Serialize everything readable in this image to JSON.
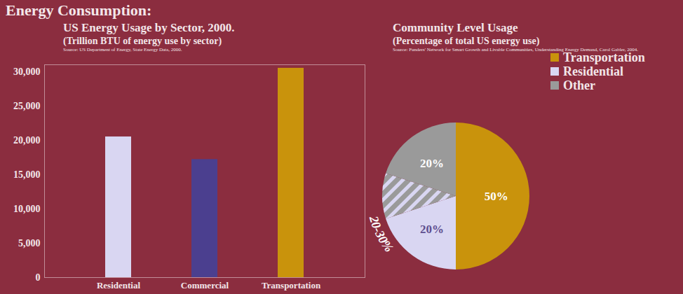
{
  "title": "Energy Consumption:",
  "chart_data": [
    {
      "type": "bar",
      "title": "US Energy Usage by Sector, 2000.",
      "subtitle": "(Trillion BTU of energy use by sector)",
      "source": "Source: US Department of Energy, State Energy Data, 2000.",
      "categories": [
        "Residential",
        "Commercial",
        "Transportation"
      ],
      "values": [
        20500,
        17200,
        30500
      ],
      "colors": [
        "#d9d6f2",
        "#4b3f8f",
        "#c9930c"
      ],
      "ylim": [
        0,
        31000
      ],
      "yticks": [
        0,
        {
          "value": 5000,
          "label": "5,000"
        },
        {
          "value": 10000,
          "label": "10,000"
        },
        {
          "value": 15000,
          "label": "15,000"
        },
        {
          "value": 20000,
          "label": "20,000"
        },
        {
          "value": 25000,
          "label": "25,000"
        },
        {
          "value": 30000,
          "label": "30,000"
        }
      ],
      "grid": false
    },
    {
      "type": "pie",
      "title": "Community Level Usage",
      "subtitle": "(Percentage of total US energy use)",
      "source": "Source: Funders' Network for Smart Growth and Livable Communities, Understanding Energy Demand, Carol Gabler, 2004.",
      "categories": [
        "Transportation",
        "Residential",
        null,
        "Other"
      ],
      "values": [
        50,
        20,
        10,
        20
      ],
      "value_labels": [
        "50%",
        "20%",
        null,
        "20%"
      ],
      "colors": [
        "#c9930c",
        "#d9d6f2",
        "#9a9a9a",
        "#9a9a9a"
      ],
      "annotations": [
        "20-30%"
      ],
      "data_labels": true,
      "legend": "top-right"
    }
  ]
}
